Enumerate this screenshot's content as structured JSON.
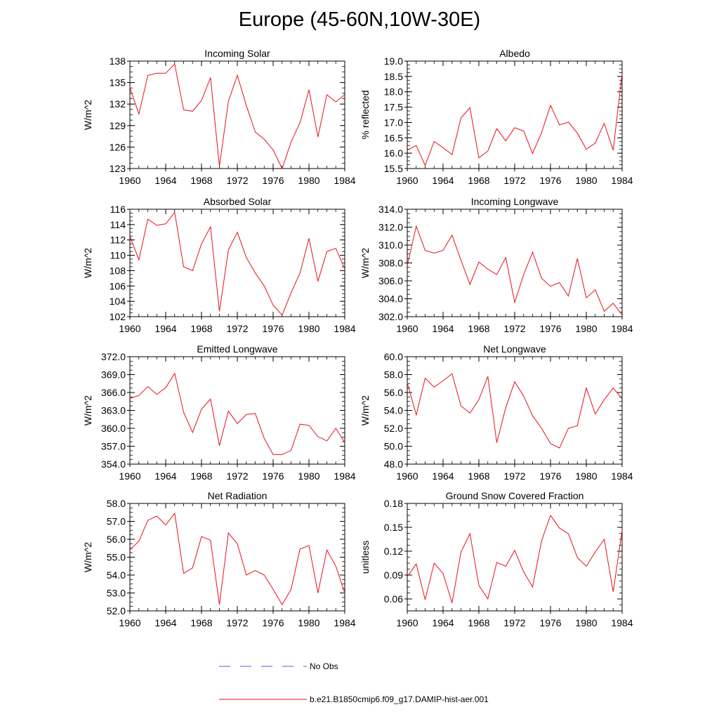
{
  "page": {
    "title": "Europe (45-60N,10W-30E)"
  },
  "legend": [
    {
      "label": "No Obs",
      "color": "#5b5bd6",
      "style": "dashed"
    },
    {
      "label": "b.e21.B1850cmip6.f09_g17.DAMIP-hist-aer.001",
      "color": "#e8101a",
      "style": "solid"
    }
  ],
  "chart_data": [
    {
      "type": "line",
      "title": "Incoming Solar",
      "ylabel": "W/m^2",
      "xlim": [
        1960,
        1984
      ],
      "ylim": [
        123,
        138
      ],
      "yticks": [
        123,
        126,
        129,
        132,
        135,
        138
      ],
      "ytick_labels": [
        "123",
        "126",
        "129",
        "132",
        "135",
        "138"
      ],
      "xticks": [
        1960,
        1964,
        1968,
        1972,
        1976,
        1980,
        1984
      ],
      "xtick_labels": [
        "1960",
        "1964",
        "1968",
        "1972",
        "1976",
        "1980",
        "1984"
      ],
      "x": [
        1960,
        1961,
        1962,
        1963,
        1964,
        1965,
        1966,
        1967,
        1968,
        1969,
        1970,
        1971,
        1972,
        1973,
        1974,
        1975,
        1976,
        1977,
        1978,
        1979,
        1980,
        1981,
        1982,
        1983,
        1984
      ],
      "series": [
        {
          "name": "b.e21.B1850cmip6.f09_g17.DAMIP-hist-aer.001",
          "color": "#e8101a",
          "values": [
            134.3,
            130.6,
            136.0,
            136.3,
            136.3,
            137.6,
            131.2,
            131.0,
            132.5,
            135.7,
            123.3,
            132.4,
            136.0,
            131.8,
            128.1,
            127.1,
            125.6,
            123.0,
            126.7,
            129.4,
            134.0,
            127.4,
            133.3,
            132.3,
            133.3
          ]
        }
      ]
    },
    {
      "type": "line",
      "title": "Albedo",
      "ylabel": "% reflected",
      "xlim": [
        1960,
        1984
      ],
      "ylim": [
        15.5,
        19.0
      ],
      "yticks": [
        15.5,
        16.0,
        16.5,
        17.0,
        17.5,
        18.0,
        18.5,
        19.0
      ],
      "ytick_labels": [
        "15.5",
        "16.0",
        "16.5",
        "17.0",
        "17.5",
        "18.0",
        "18.5",
        "19.0"
      ],
      "xticks": [
        1960,
        1964,
        1968,
        1972,
        1976,
        1980,
        1984
      ],
      "xtick_labels": [
        "1960",
        "1964",
        "1968",
        "1972",
        "1976",
        "1980",
        "1984"
      ],
      "x": [
        1960,
        1961,
        1962,
        1963,
        1964,
        1965,
        1966,
        1967,
        1968,
        1969,
        1970,
        1971,
        1972,
        1973,
        1974,
        1975,
        1976,
        1977,
        1978,
        1979,
        1980,
        1981,
        1982,
        1983,
        1984
      ],
      "series": [
        {
          "name": "b.e21.B1850cmip6.f09_g17.DAMIP-hist-aer.001",
          "color": "#e8101a",
          "values": [
            16.1,
            16.25,
            15.6,
            16.38,
            16.18,
            15.95,
            17.15,
            17.48,
            15.85,
            16.07,
            16.8,
            16.4,
            16.83,
            16.72,
            15.99,
            16.67,
            17.56,
            16.92,
            17.01,
            16.65,
            16.13,
            16.33,
            16.97,
            16.1,
            18.6
          ]
        }
      ]
    },
    {
      "type": "line",
      "title": "Absorbed Solar",
      "ylabel": "W/m^2",
      "xlim": [
        1960,
        1984
      ],
      "ylim": [
        102,
        116
      ],
      "yticks": [
        102,
        104,
        106,
        108,
        110,
        112,
        114,
        116
      ],
      "ytick_labels": [
        "102",
        "104",
        "106",
        "108",
        "110",
        "112",
        "114",
        "116"
      ],
      "xticks": [
        1960,
        1964,
        1968,
        1972,
        1976,
        1980,
        1984
      ],
      "xtick_labels": [
        "1960",
        "1964",
        "1968",
        "1972",
        "1976",
        "1980",
        "1984"
      ],
      "x": [
        1960,
        1961,
        1962,
        1963,
        1964,
        1965,
        1966,
        1967,
        1968,
        1969,
        1970,
        1971,
        1972,
        1973,
        1974,
        1975,
        1976,
        1977,
        1978,
        1979,
        1980,
        1981,
        1982,
        1983,
        1984
      ],
      "series": [
        {
          "name": "b.e21.B1850cmip6.f09_g17.DAMIP-hist-aer.001",
          "color": "#e8101a",
          "values": [
            112.5,
            109.4,
            114.7,
            113.9,
            114.1,
            115.6,
            108.5,
            108.0,
            111.5,
            113.7,
            102.7,
            110.7,
            113.0,
            109.7,
            107.7,
            106.0,
            103.5,
            102.2,
            105.1,
            107.7,
            112.2,
            106.6,
            110.5,
            110.9,
            108.2
          ]
        }
      ]
    },
    {
      "type": "line",
      "title": "Incoming Longwave",
      "ylabel": "W/m^2",
      "xlim": [
        1960,
        1984
      ],
      "ylim": [
        302.0,
        314.0
      ],
      "yticks": [
        302,
        304,
        306,
        308,
        310,
        312,
        314
      ],
      "ytick_labels": [
        "302.0",
        "304.0",
        "306.0",
        "308.0",
        "310.0",
        "312.0",
        "314.0"
      ],
      "xticks": [
        1960,
        1964,
        1968,
        1972,
        1976,
        1980,
        1984
      ],
      "xtick_labels": [
        "1960",
        "1964",
        "1968",
        "1972",
        "1976",
        "1980",
        "1984"
      ],
      "x": [
        1960,
        1961,
        1962,
        1963,
        1964,
        1965,
        1966,
        1967,
        1968,
        1969,
        1970,
        1971,
        1972,
        1973,
        1974,
        1975,
        1976,
        1977,
        1978,
        1979,
        1980,
        1981,
        1982,
        1983,
        1984
      ],
      "series": [
        {
          "name": "b.e21.B1850cmip6.f09_g17.DAMIP-hist-aer.001",
          "color": "#e8101a",
          "values": [
            307.7,
            312.1,
            309.4,
            309.1,
            309.4,
            311.1,
            308.3,
            305.6,
            308.1,
            307.3,
            306.7,
            308.6,
            303.6,
            306.7,
            309.2,
            306.3,
            305.4,
            305.8,
            304.3,
            308.5,
            304.1,
            305.0,
            302.6,
            303.5,
            302.2
          ]
        }
      ]
    },
    {
      "type": "line",
      "title": "Emitted Longwave",
      "ylabel": "W/m^2",
      "xlim": [
        1960,
        1984
      ],
      "ylim": [
        354.0,
        372.0
      ],
      "yticks": [
        354,
        357,
        360,
        363,
        366,
        369,
        372
      ],
      "ytick_labels": [
        "354.0",
        "357.0",
        "360.0",
        "363.0",
        "366.0",
        "369.0",
        "372.0"
      ],
      "xticks": [
        1960,
        1964,
        1968,
        1972,
        1976,
        1980,
        1984
      ],
      "xtick_labels": [
        "1960",
        "1964",
        "1968",
        "1972",
        "1976",
        "1980",
        "1984"
      ],
      "x": [
        1960,
        1961,
        1962,
        1963,
        1964,
        1965,
        1966,
        1967,
        1968,
        1969,
        1970,
        1971,
        1972,
        1973,
        1974,
        1975,
        1976,
        1977,
        1978,
        1979,
        1980,
        1981,
        1982,
        1983,
        1984
      ],
      "series": [
        {
          "name": "b.e21.B1850cmip6.f09_g17.DAMIP-hist-aer.001",
          "color": "#e8101a",
          "values": [
            365.0,
            365.5,
            367.0,
            365.7,
            366.8,
            369.2,
            362.7,
            359.3,
            363.2,
            364.9,
            357.1,
            362.9,
            360.8,
            362.3,
            362.5,
            358.3,
            355.6,
            355.6,
            356.3,
            360.7,
            360.5,
            358.6,
            357.9,
            360.0,
            357.6
          ]
        }
      ]
    },
    {
      "type": "line",
      "title": "Net Longwave",
      "ylabel": "W/m^2",
      "xlim": [
        1960,
        1984
      ],
      "ylim": [
        48.0,
        60.0
      ],
      "yticks": [
        48,
        50,
        52,
        54,
        56,
        58,
        60
      ],
      "ytick_labels": [
        "48.0",
        "50.0",
        "52.0",
        "54.0",
        "56.0",
        "58.0",
        "60.0"
      ],
      "xticks": [
        1960,
        1964,
        1968,
        1972,
        1976,
        1980,
        1984
      ],
      "xtick_labels": [
        "1960",
        "1964",
        "1968",
        "1972",
        "1976",
        "1980",
        "1984"
      ],
      "x": [
        1960,
        1961,
        1962,
        1963,
        1964,
        1965,
        1966,
        1967,
        1968,
        1969,
        1970,
        1971,
        1972,
        1973,
        1974,
        1975,
        1976,
        1977,
        1978,
        1979,
        1980,
        1981,
        1982,
        1983,
        1984
      ],
      "series": [
        {
          "name": "b.e21.B1850cmip6.f09_g17.DAMIP-hist-aer.001",
          "color": "#e8101a",
          "values": [
            57.1,
            53.5,
            57.6,
            56.6,
            57.3,
            58.1,
            54.5,
            53.7,
            55.2,
            57.8,
            50.4,
            54.3,
            57.2,
            55.6,
            53.4,
            52.0,
            50.3,
            49.8,
            52.0,
            52.3,
            56.5,
            53.6,
            55.2,
            56.5,
            55.3
          ]
        }
      ]
    },
    {
      "type": "line",
      "title": "Net Radiation",
      "ylabel": "W/m^2",
      "xlim": [
        1960,
        1984
      ],
      "ylim": [
        52.0,
        58.0
      ],
      "yticks": [
        52,
        53,
        54,
        55,
        56,
        57,
        58
      ],
      "ytick_labels": [
        "52.0",
        "53.0",
        "54.0",
        "55.0",
        "56.0",
        "57.0",
        "58.0"
      ],
      "xticks": [
        1960,
        1964,
        1968,
        1972,
        1976,
        1980,
        1984
      ],
      "xtick_labels": [
        "1960",
        "1964",
        "1968",
        "1972",
        "1976",
        "1980",
        "1984"
      ],
      "x": [
        1960,
        1961,
        1962,
        1963,
        1964,
        1965,
        1966,
        1967,
        1968,
        1969,
        1970,
        1971,
        1972,
        1973,
        1974,
        1975,
        1976,
        1977,
        1978,
        1979,
        1980,
        1981,
        1982,
        1983,
        1984
      ],
      "series": [
        {
          "name": "b.e21.B1850cmip6.f09_g17.DAMIP-hist-aer.001",
          "color": "#e8101a",
          "values": [
            55.4,
            55.9,
            57.05,
            57.3,
            56.8,
            57.45,
            54.1,
            54.4,
            56.15,
            55.95,
            52.35,
            56.35,
            55.75,
            54.0,
            54.25,
            54.0,
            53.2,
            52.35,
            53.2,
            55.45,
            55.65,
            53.0,
            55.4,
            54.5,
            53.0
          ]
        }
      ]
    },
    {
      "type": "line",
      "title": "Ground Snow Covered Fraction",
      "ylabel": "unitless",
      "xlim": [
        1960,
        1984
      ],
      "ylim": [
        0.045,
        0.18
      ],
      "yticks": [
        0.06,
        0.09,
        0.12,
        0.15,
        0.18
      ],
      "ytick_labels": [
        "0.06",
        "0.09",
        "0.12",
        "0.15",
        "0.18"
      ],
      "xticks": [
        1960,
        1964,
        1968,
        1972,
        1976,
        1980,
        1984
      ],
      "xtick_labels": [
        "1960",
        "1964",
        "1968",
        "1972",
        "1976",
        "1980",
        "1984"
      ],
      "x": [
        1960,
        1961,
        1962,
        1963,
        1964,
        1965,
        1966,
        1967,
        1968,
        1969,
        1970,
        1971,
        1972,
        1973,
        1974,
        1975,
        1976,
        1977,
        1978,
        1979,
        1980,
        1981,
        1982,
        1983,
        1984
      ],
      "series": [
        {
          "name": "b.e21.B1850cmip6.f09_g17.DAMIP-hist-aer.001",
          "color": "#e8101a",
          "values": [
            0.088,
            0.104,
            0.059,
            0.105,
            0.092,
            0.055,
            0.119,
            0.142,
            0.077,
            0.06,
            0.106,
            0.101,
            0.121,
            0.094,
            0.075,
            0.133,
            0.165,
            0.149,
            0.142,
            0.112,
            0.101,
            0.119,
            0.135,
            0.069,
            0.146
          ]
        }
      ]
    }
  ]
}
